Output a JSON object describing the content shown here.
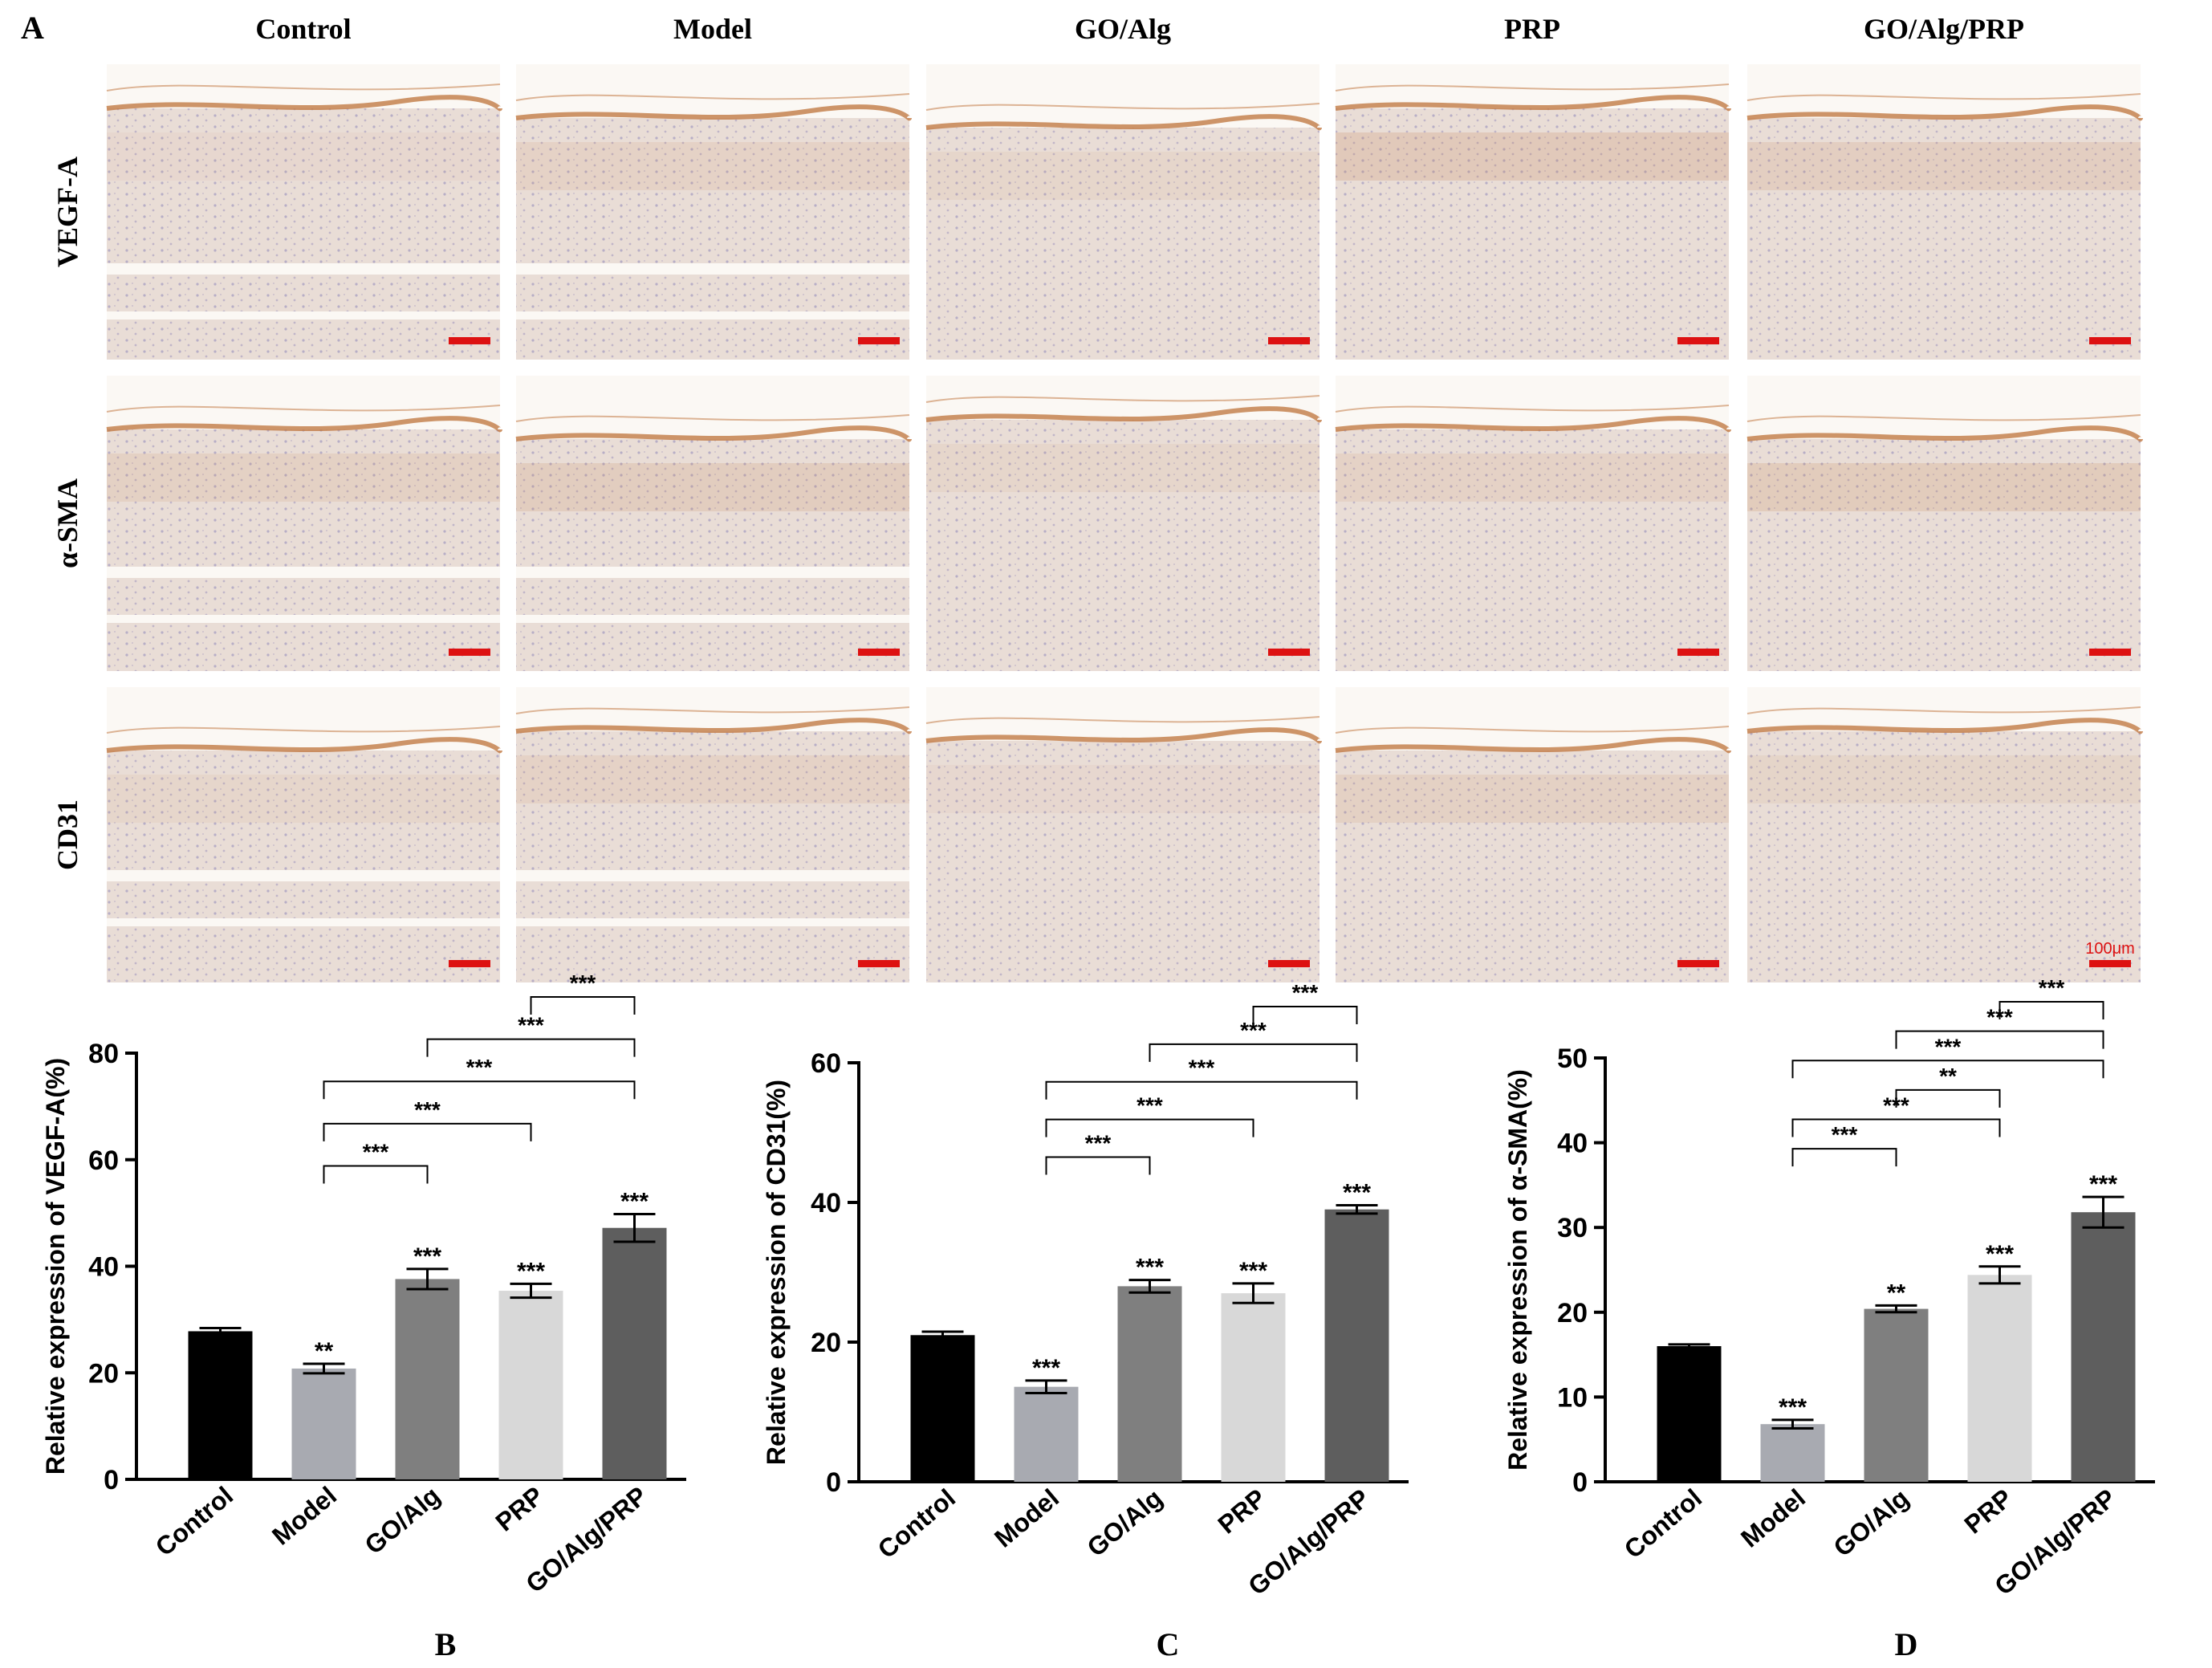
{
  "panel_A": {
    "label": "A",
    "columns": [
      "Control",
      "Model",
      "GO/Alg",
      "PRP",
      "GO/Alg/PRP"
    ],
    "rows": [
      "VEGF-A",
      "α-SMA",
      "CD31"
    ],
    "scale_bar_label": "100μm",
    "colors": {
      "tissue": "#e9ddd6",
      "stain_brown": "#c27a45",
      "hematoxylin": "#8e86b8",
      "scale_bar": "#dd1111"
    }
  },
  "chart_data": [
    {
      "panel": "B",
      "type": "bar",
      "categories": [
        "Control",
        "Model",
        "GO/Alg",
        "PRP",
        "GO/Alg/PRP"
      ],
      "values": [
        27.8,
        20.8,
        37.6,
        35.4,
        47.2
      ],
      "errors": [
        0.6,
        0.9,
        1.9,
        1.3,
        2.6
      ],
      "bar_stars": [
        "",
        "**",
        "***",
        "***",
        "***"
      ],
      "brackets": [
        {
          "from": 1,
          "to": 2,
          "label": "***"
        },
        {
          "from": 1,
          "to": 3,
          "label": "***"
        },
        {
          "from": 1,
          "to": 4,
          "label": "***"
        },
        {
          "from": 2,
          "to": 4,
          "label": "***"
        },
        {
          "from": 3,
          "to": 4,
          "label": "***"
        }
      ],
      "ylabel": "Relative expression of VEGF-A(%)",
      "ylim": [
        0,
        80
      ],
      "yticks": [
        0,
        20,
        40,
        60,
        80
      ],
      "bar_colors": [
        "#000000",
        "#a8aab1",
        "#7f7f7f",
        "#d8d8d8",
        "#5e5e5e"
      ]
    },
    {
      "panel": "C",
      "type": "bar",
      "categories": [
        "Control",
        "Model",
        "GO/Alg",
        "PRP",
        "GO/Alg/PRP"
      ],
      "values": [
        21.0,
        13.6,
        28.0,
        27.0,
        39.0
      ],
      "errors": [
        0.5,
        0.9,
        0.9,
        1.4,
        0.6
      ],
      "bar_stars": [
        "",
        "***",
        "***",
        "***",
        "***"
      ],
      "brackets": [
        {
          "from": 1,
          "to": 2,
          "label": "***"
        },
        {
          "from": 1,
          "to": 3,
          "label": "***"
        },
        {
          "from": 1,
          "to": 4,
          "label": "***"
        },
        {
          "from": 2,
          "to": 4,
          "label": "***"
        },
        {
          "from": 3,
          "to": 4,
          "label": "***"
        }
      ],
      "ylabel": "Relative expression of CD31(%)",
      "ylim": [
        0,
        60
      ],
      "yticks": [
        0,
        20,
        40,
        60
      ],
      "bar_colors": [
        "#000000",
        "#a8aab1",
        "#7f7f7f",
        "#d8d8d8",
        "#5e5e5e"
      ]
    },
    {
      "panel": "D",
      "type": "bar",
      "categories": [
        "Control",
        "Model",
        "GO/Alg",
        "PRP",
        "GO/Alg/PRP"
      ],
      "values": [
        16.0,
        6.8,
        20.4,
        24.4,
        31.8
      ],
      "errors": [
        0.2,
        0.5,
        0.4,
        1.0,
        1.8
      ],
      "bar_stars": [
        "",
        "***",
        "**",
        "***",
        "***"
      ],
      "brackets": [
        {
          "from": 1,
          "to": 2,
          "label": "***"
        },
        {
          "from": 1,
          "to": 3,
          "label": "***"
        },
        {
          "from": 2,
          "to": 3,
          "label": "**"
        },
        {
          "from": 1,
          "to": 4,
          "label": "***"
        },
        {
          "from": 2,
          "to": 4,
          "label": "***"
        },
        {
          "from": 3,
          "to": 4,
          "label": "***"
        }
      ],
      "ylabel": "Relative expression of α-SMA(%)",
      "ylim": [
        0,
        50
      ],
      "yticks": [
        0,
        10,
        20,
        30,
        40,
        50
      ],
      "bar_colors": [
        "#000000",
        "#a8aab1",
        "#7f7f7f",
        "#d8d8d8",
        "#5e5e5e"
      ]
    }
  ]
}
